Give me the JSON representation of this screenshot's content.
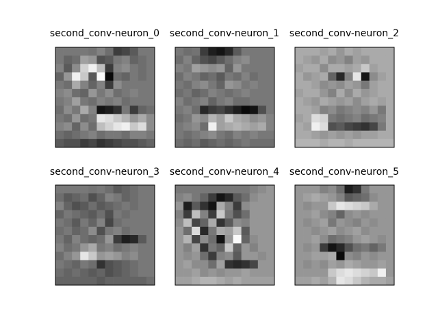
{
  "figure": {
    "background": "#ffffff",
    "colormap": "gray",
    "frame_color": "#000000"
  },
  "chart_data": [
    {
      "type": "heatmap",
      "title": "second_conv-neuron_0",
      "rows": 12,
      "cols": 12,
      "vmin": 0,
      "vmax": 255,
      "values": [
        [
          120,
          120,
          120,
          120,
          115,
          130,
          110,
          60,
          70,
          90,
          120,
          120
        ],
        [
          120,
          100,
          110,
          160,
          150,
          80,
          90,
          120,
          130,
          100,
          110,
          120
        ],
        [
          130,
          90,
          140,
          210,
          240,
          190,
          60,
          130,
          140,
          120,
          110,
          120
        ],
        [
          100,
          150,
          240,
          200,
          90,
          250,
          10,
          110,
          100,
          120,
          110,
          120
        ],
        [
          120,
          110,
          170,
          130,
          100,
          130,
          60,
          140,
          120,
          120,
          120,
          120
        ],
        [
          130,
          140,
          110,
          100,
          150,
          120,
          140,
          110,
          120,
          130,
          120,
          120
        ],
        [
          120,
          130,
          160,
          120,
          110,
          130,
          120,
          130,
          110,
          120,
          120,
          120
        ],
        [
          110,
          140,
          120,
          170,
          130,
          20,
          30,
          50,
          120,
          60,
          100,
          110
        ],
        [
          120,
          110,
          150,
          110,
          120,
          230,
          220,
          200,
          180,
          150,
          170,
          140
        ],
        [
          130,
          140,
          100,
          140,
          110,
          190,
          210,
          230,
          240,
          200,
          220,
          140
        ],
        [
          110,
          100,
          110,
          120,
          130,
          110,
          120,
          120,
          110,
          130,
          130,
          120
        ],
        [
          90,
          80,
          80,
          60,
          70,
          50,
          60,
          70,
          80,
          80,
          90,
          100
        ]
      ]
    },
    {
      "type": "heatmap",
      "title": "second_conv-neuron_1",
      "rows": 12,
      "cols": 12,
      "vmin": 0,
      "vmax": 255,
      "values": [
        [
          120,
          110,
          115,
          60,
          30,
          20,
          40,
          90,
          120,
          120,
          120,
          120
        ],
        [
          110,
          130,
          100,
          80,
          70,
          90,
          110,
          130,
          140,
          120,
          120,
          120
        ],
        [
          130,
          120,
          160,
          150,
          140,
          150,
          100,
          150,
          120,
          120,
          120,
          120
        ],
        [
          110,
          130,
          120,
          100,
          110,
          90,
          120,
          110,
          130,
          110,
          120,
          120
        ],
        [
          120,
          110,
          130,
          140,
          120,
          100,
          150,
          140,
          120,
          130,
          120,
          120
        ],
        [
          110,
          120,
          100,
          110,
          130,
          120,
          110,
          120,
          130,
          120,
          120,
          120
        ],
        [
          130,
          110,
          120,
          130,
          100,
          120,
          130,
          110,
          110,
          120,
          120,
          120
        ],
        [
          120,
          130,
          110,
          40,
          60,
          70,
          50,
          30,
          10,
          20,
          80,
          120
        ],
        [
          110,
          120,
          150,
          140,
          180,
          160,
          200,
          170,
          160,
          140,
          150,
          130
        ],
        [
          120,
          130,
          140,
          110,
          240,
          160,
          170,
          180,
          170,
          160,
          170,
          130
        ],
        [
          120,
          110,
          120,
          130,
          140,
          120,
          110,
          130,
          120,
          130,
          120,
          120
        ],
        [
          110,
          100,
          110,
          90,
          100,
          110,
          100,
          110,
          120,
          110,
          110,
          110
        ]
      ]
    },
    {
      "type": "heatmap",
      "title": "second_conv-neuron_2",
      "rows": 12,
      "cols": 12,
      "vmin": 0,
      "vmax": 255,
      "values": [
        [
          170,
          170,
          170,
          160,
          170,
          150,
          170,
          160,
          170,
          170,
          170,
          170
        ],
        [
          170,
          160,
          150,
          170,
          140,
          150,
          130,
          160,
          150,
          170,
          170,
          170
        ],
        [
          160,
          170,
          170,
          140,
          170,
          170,
          160,
          170,
          200,
          160,
          170,
          170
        ],
        [
          170,
          150,
          160,
          170,
          100,
          40,
          130,
          230,
          20,
          140,
          160,
          170
        ],
        [
          170,
          170,
          160,
          140,
          150,
          140,
          160,
          150,
          120,
          160,
          170,
          170
        ],
        [
          160,
          170,
          170,
          150,
          130,
          170,
          140,
          170,
          150,
          160,
          170,
          170
        ],
        [
          170,
          160,
          150,
          170,
          160,
          150,
          160,
          140,
          160,
          170,
          160,
          170
        ],
        [
          170,
          170,
          160,
          130,
          140,
          120,
          130,
          140,
          130,
          150,
          120,
          170
        ],
        [
          160,
          170,
          220,
          210,
          120,
          110,
          120,
          130,
          110,
          120,
          130,
          170
        ],
        [
          170,
          160,
          240,
          220,
          80,
          90,
          70,
          60,
          50,
          70,
          120,
          170
        ],
        [
          170,
          170,
          160,
          150,
          160,
          150,
          160,
          150,
          160,
          160,
          170,
          170
        ],
        [
          180,
          180,
          180,
          170,
          180,
          180,
          170,
          180,
          180,
          180,
          180,
          180
        ]
      ]
    },
    {
      "type": "heatmap",
      "title": "second_conv-neuron_3",
      "rows": 12,
      "cols": 12,
      "vmin": 0,
      "vmax": 255,
      "values": [
        [
          120,
          120,
          120,
          120,
          115,
          120,
          110,
          90,
          100,
          110,
          120,
          120
        ],
        [
          110,
          90,
          100,
          110,
          80,
          100,
          130,
          120,
          100,
          110,
          120,
          120
        ],
        [
          130,
          100,
          80,
          90,
          110,
          90,
          100,
          110,
          120,
          110,
          120,
          120
        ],
        [
          100,
          120,
          110,
          100,
          90,
          110,
          80,
          120,
          110,
          120,
          120,
          120
        ],
        [
          120,
          110,
          90,
          120,
          100,
          130,
          70,
          110,
          120,
          120,
          120,
          120
        ],
        [
          110,
          120,
          100,
          110,
          140,
          80,
          120,
          130,
          110,
          120,
          120,
          120
        ],
        [
          120,
          100,
          130,
          110,
          100,
          110,
          150,
          60,
          30,
          40,
          90,
          120
        ],
        [
          130,
          110,
          120,
          150,
          170,
          120,
          130,
          110,
          120,
          130,
          120,
          120
        ],
        [
          110,
          130,
          150,
          230,
          200,
          150,
          160,
          150,
          130,
          140,
          120,
          120
        ],
        [
          120,
          110,
          100,
          120,
          110,
          50,
          80,
          90,
          100,
          110,
          120,
          120
        ],
        [
          110,
          100,
          110,
          100,
          90,
          100,
          80,
          90,
          100,
          110,
          120,
          120
        ],
        [
          100,
          100,
          100,
          100,
          100,
          90,
          100,
          100,
          100,
          100,
          100,
          110
        ]
      ]
    },
    {
      "type": "heatmap",
      "title": "second_conv-neuron_4",
      "rows": 12,
      "cols": 12,
      "vmin": 0,
      "vmax": 255,
      "values": [
        [
          120,
          120,
          120,
          120,
          120,
          120,
          120,
          120,
          120,
          130,
          140,
          150
        ],
        [
          130,
          140,
          120,
          100,
          60,
          20,
          40,
          90,
          110,
          140,
          150,
          150
        ],
        [
          150,
          30,
          90,
          50,
          20,
          170,
          130,
          60,
          140,
          150,
          150,
          150
        ],
        [
          130,
          60,
          190,
          130,
          60,
          200,
          120,
          80,
          110,
          150,
          150,
          150
        ],
        [
          140,
          190,
          70,
          100,
          170,
          50,
          90,
          140,
          130,
          150,
          150,
          150
        ],
        [
          150,
          110,
          220,
          40,
          120,
          170,
          160,
          200,
          90,
          150,
          150,
          150
        ],
        [
          150,
          180,
          70,
          140,
          110,
          20,
          150,
          250,
          100,
          140,
          150,
          150
        ],
        [
          150,
          130,
          160,
          50,
          120,
          100,
          200,
          100,
          150,
          130,
          150,
          150
        ],
        [
          150,
          140,
          150,
          110,
          60,
          130,
          140,
          90,
          150,
          150,
          140,
          150
        ],
        [
          150,
          160,
          140,
          140,
          110,
          160,
          50,
          40,
          50,
          70,
          150,
          150
        ],
        [
          150,
          150,
          160,
          140,
          150,
          140,
          150,
          150,
          160,
          150,
          150,
          150
        ],
        [
          160,
          160,
          170,
          180,
          180,
          170,
          160,
          170,
          160,
          160,
          160,
          160
        ]
      ]
    },
    {
      "type": "heatmap",
      "title": "second_conv-neuron_5",
      "rows": 12,
      "cols": 12,
      "vmin": 0,
      "vmax": 255,
      "values": [
        [
          150,
          150,
          150,
          130,
          140,
          110,
          30,
          50,
          120,
          150,
          150,
          150
        ],
        [
          150,
          160,
          170,
          160,
          150,
          130,
          90,
          100,
          110,
          140,
          150,
          150
        ],
        [
          150,
          140,
          150,
          150,
          200,
          230,
          220,
          210,
          200,
          170,
          150,
          150
        ],
        [
          150,
          150,
          160,
          140,
          130,
          100,
          140,
          150,
          140,
          150,
          150,
          150
        ],
        [
          150,
          140,
          150,
          160,
          120,
          150,
          140,
          130,
          150,
          140,
          150,
          150
        ],
        [
          150,
          150,
          140,
          150,
          160,
          140,
          150,
          160,
          140,
          150,
          150,
          150
        ],
        [
          150,
          150,
          160,
          140,
          110,
          120,
          130,
          150,
          160,
          150,
          140,
          150
        ],
        [
          150,
          140,
          150,
          60,
          20,
          40,
          80,
          110,
          120,
          100,
          120,
          150
        ],
        [
          150,
          150,
          160,
          160,
          170,
          10,
          140,
          130,
          150,
          140,
          150,
          150
        ],
        [
          150,
          140,
          150,
          140,
          160,
          150,
          170,
          160,
          150,
          150,
          160,
          150
        ],
        [
          150,
          150,
          150,
          150,
          200,
          220,
          230,
          220,
          210,
          200,
          240,
          150
        ],
        [
          160,
          160,
          170,
          160,
          180,
          230,
          220,
          200,
          180,
          170,
          170,
          160
        ]
      ]
    }
  ]
}
